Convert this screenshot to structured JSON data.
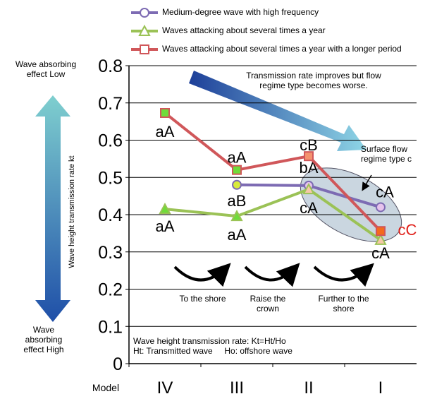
{
  "chart_data": {
    "type": "line",
    "categories": [
      "IV",
      "III",
      "II",
      "I"
    ],
    "x_label": "Model",
    "y_label": "Wave height transmission rate kt",
    "ylim": [
      0,
      0.8
    ],
    "yticks": [
      0,
      0.1,
      0.2,
      0.3,
      0.4,
      0.5,
      0.6,
      0.7,
      0.8
    ],
    "grid": true,
    "series": [
      {
        "name": "Medium-degree wave with high frequency",
        "color": "#7d6bb3",
        "marker": "circle",
        "values": [
          null,
          0.48,
          0.478,
          0.42
        ],
        "marker_fills": [
          null,
          "#d8ea3c",
          "#e6c3ec",
          "#e6c3ec"
        ],
        "point_labels": [
          null,
          "aB",
          "bA",
          "cA"
        ]
      },
      {
        "name": "Waves attacking about several times a year",
        "color": "#9bc256",
        "marker": "triangle",
        "values": [
          0.415,
          0.396,
          0.468,
          0.332
        ],
        "marker_fills": [
          "#6fdc3a",
          "#6fdc3a",
          "#f6c8a8",
          "#f6c8a8"
        ],
        "point_labels": [
          "aA",
          "aA",
          "cA",
          "cA"
        ]
      },
      {
        "name": "Waves attacking about several times a year with a longer period",
        "color": "#d0575a",
        "marker": "square",
        "values": [
          0.673,
          0.52,
          0.557,
          0.356
        ],
        "marker_fills": [
          "#6fdc3a",
          "#6fdc3a",
          "#f4926e",
          "#f46a1c"
        ],
        "point_labels": [
          "aA",
          "aA",
          "cB",
          "cC"
        ]
      }
    ],
    "annotations": {
      "effect_low": "Wave absorbing effect Low",
      "effect_high": "Wave absorbing effect High",
      "trend": "Transmission rate improves but flow regime type becomes worse.",
      "surface_flow": "Surface flow regime type c",
      "step1": "To the shore",
      "step2": "Raise the crown",
      "step3": "Further to the shore",
      "formula1": "Wave height transmission rate: Kt=Ht/Ho",
      "formula2": "Ht: Transmitted wave     Ho: offshore wave"
    }
  }
}
